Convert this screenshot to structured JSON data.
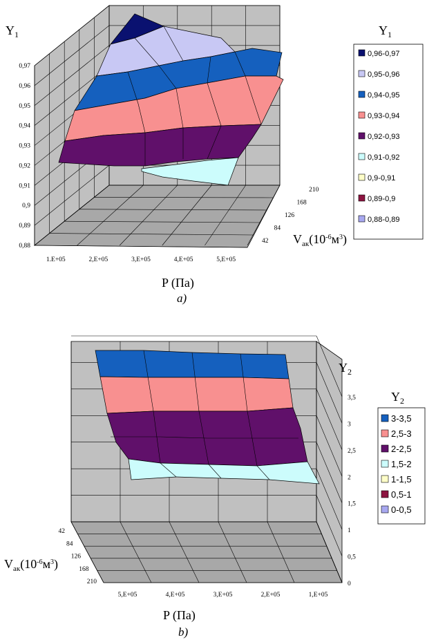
{
  "chart_data": [
    {
      "type": "surface",
      "panel_label": "a)",
      "z_axis_title": "Y",
      "z_axis_sub": "1",
      "x_axis_title": "P (Па)",
      "depth_axis_title_main": "V",
      "depth_axis_title_sub": "ак",
      "depth_axis_title_unit": "(10",
      "depth_axis_title_exp": "-6",
      "depth_axis_title_tail": "м",
      "depth_axis_title_exp2": "3",
      "depth_axis_title_close": ")",
      "x_ticks": [
        "1.E+05",
        "2,E+05",
        "3,E+05",
        "4,E+05",
        "5,E+05"
      ],
      "depth_ticks": [
        "42",
        "84",
        "126",
        "168",
        "210"
      ],
      "z_ticks": [
        "0,88",
        "0,89",
        "0,9",
        "0,91",
        "0,92",
        "0,93",
        "0,94",
        "0,95",
        "0,96",
        "0,97"
      ],
      "zlim": [
        0.88,
        0.97
      ],
      "legend_title": "Y",
      "legend_title_sub": "1",
      "legend": [
        {
          "label": "0,96-0,97",
          "color": "#0a1170"
        },
        {
          "label": "0,95-0,96",
          "color": "#c8c8f4"
        },
        {
          "label": "0,94-0,95",
          "color": "#1560be"
        },
        {
          "label": "0,93-0,94",
          "color": "#f89090"
        },
        {
          "label": "0,92-0,93",
          "color": "#60106a"
        },
        {
          "label": "0,91-0,92",
          "color": "#ccfcfc"
        },
        {
          "label": "0,9-0,91",
          "color": "#fefec8"
        },
        {
          "label": "0,89-0,9",
          "color": "#8c1440"
        },
        {
          "label": "0,88-0,89",
          "color": "#a8a8f0"
        }
      ],
      "bands": [
        {
          "range": "0,96-0,97",
          "color": "#0a1170"
        },
        {
          "range": "0,95-0,96",
          "color": "#c8c8f4"
        },
        {
          "range": "0,94-0,95",
          "color": "#1560be"
        },
        {
          "range": "0,93-0,94",
          "color": "#f89090"
        },
        {
          "range": "0,92-0,93",
          "color": "#60106a"
        },
        {
          "range": "0,91-0,92",
          "color": "#ccfcfc"
        }
      ]
    },
    {
      "type": "surface",
      "panel_label": "b)",
      "z_axis_title": "Y",
      "z_axis_sub": "2",
      "x_axis_title": "P (Па)",
      "depth_axis_title_main": "V",
      "depth_axis_title_sub": "ак",
      "depth_axis_title_unit": "(10",
      "depth_axis_title_exp": "-6",
      "depth_axis_title_tail": "м",
      "depth_axis_title_exp2": "3",
      "depth_axis_title_close": ")",
      "x_ticks": [
        "5,E+05",
        "4,E+05",
        "3,E+05",
        "2,E+05",
        "1,E+05"
      ],
      "depth_ticks": [
        "42",
        "84",
        "126",
        "168",
        "210"
      ],
      "z_ticks": [
        "0",
        "0,5",
        "1",
        "1,5",
        "2",
        "2,5",
        "3",
        "3,5"
      ],
      "zlim": [
        0,
        3.5
      ],
      "legend_title": "Y",
      "legend_title_sub": "2",
      "legend": [
        {
          "label": "3-3,5",
          "color": "#1560be"
        },
        {
          "label": "2,5-3",
          "color": "#f89090"
        },
        {
          "label": "2-2,5",
          "color": "#60106a"
        },
        {
          "label": "1,5-2",
          "color": "#ccfcfc"
        },
        {
          "label": "1-1,5",
          "color": "#fefec8"
        },
        {
          "label": "0,5-1",
          "color": "#8c1440"
        },
        {
          "label": "0-0,5",
          "color": "#a8a8f0"
        }
      ],
      "bands": [
        {
          "range": "3-3,5",
          "color": "#1560be"
        },
        {
          "range": "2,5-3",
          "color": "#f89090"
        },
        {
          "range": "2-2,5",
          "color": "#60106a"
        },
        {
          "range": "1,5-2",
          "color": "#ccfcfc"
        }
      ]
    }
  ]
}
